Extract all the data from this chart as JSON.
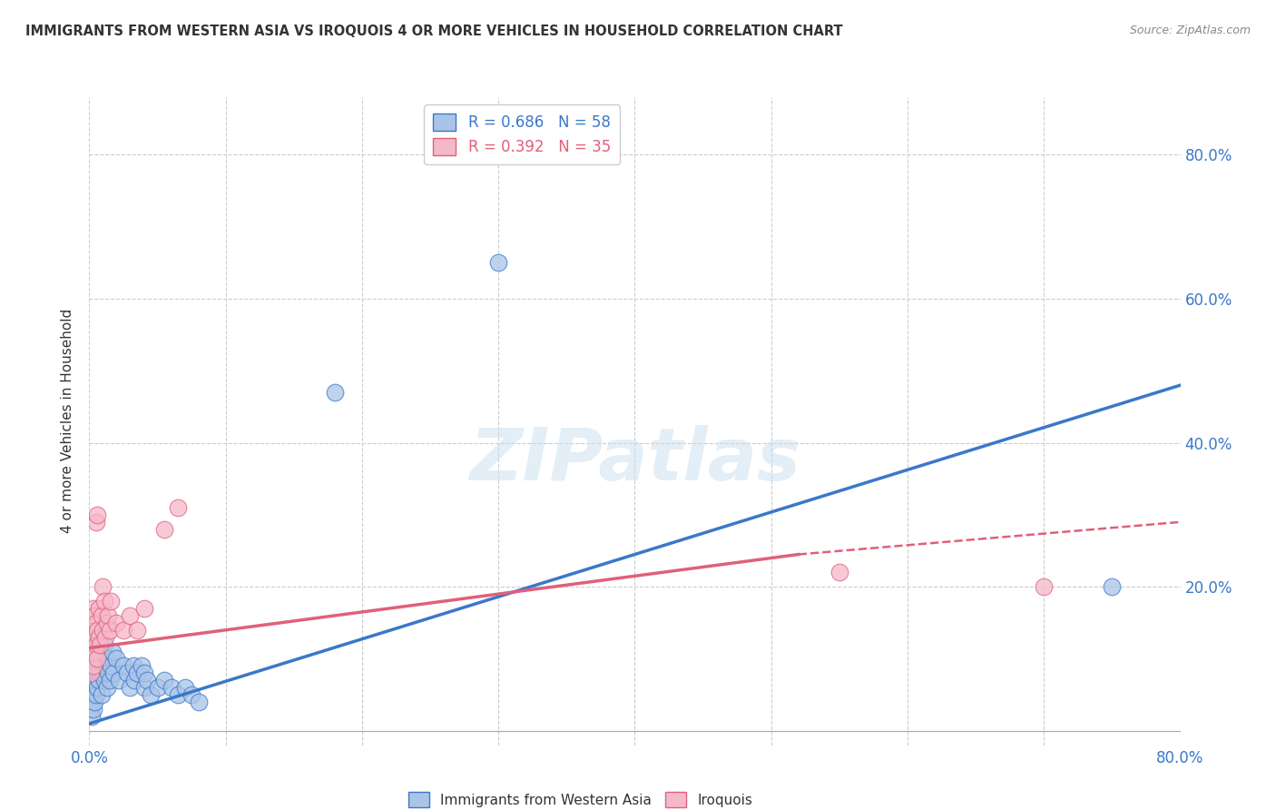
{
  "title": "IMMIGRANTS FROM WESTERN ASIA VS IROQUOIS 4 OR MORE VEHICLES IN HOUSEHOLD CORRELATION CHART",
  "source": "Source: ZipAtlas.com",
  "ylabel": "4 or more Vehicles in Household",
  "legend_label_blue": "Immigrants from Western Asia",
  "legend_label_pink": "Iroquois",
  "R_blue": 0.686,
  "N_blue": 58,
  "R_pink": 0.392,
  "N_pink": 35,
  "xlim": [
    0.0,
    0.8
  ],
  "ylim": [
    -0.02,
    0.88
  ],
  "plot_ylim": [
    0.0,
    0.8
  ],
  "xticks": [
    0.0,
    0.1,
    0.2,
    0.3,
    0.4,
    0.5,
    0.6,
    0.7,
    0.8
  ],
  "xtick_labels": [
    "0.0%",
    "",
    "",
    "",
    "",
    "",
    "",
    "",
    "80.0%"
  ],
  "yticks": [
    0.0,
    0.2,
    0.4,
    0.6,
    0.8
  ],
  "ytick_labels": [
    "",
    "20.0%",
    "40.0%",
    "60.0%",
    "80.0%"
  ],
  "color_blue": "#aac4e8",
  "color_blue_line": "#3a78c9",
  "color_pink": "#f5b8ca",
  "color_pink_line": "#e0607a",
  "watermark": "ZIPatlas",
  "background_color": "#ffffff",
  "blue_scatter": [
    [
      0.001,
      0.03
    ],
    [
      0.001,
      0.05
    ],
    [
      0.002,
      0.02
    ],
    [
      0.002,
      0.06
    ],
    [
      0.003,
      0.03
    ],
    [
      0.003,
      0.07
    ],
    [
      0.003,
      0.09
    ],
    [
      0.004,
      0.04
    ],
    [
      0.004,
      0.08
    ],
    [
      0.004,
      0.1
    ],
    [
      0.005,
      0.05
    ],
    [
      0.005,
      0.09
    ],
    [
      0.005,
      0.11
    ],
    [
      0.006,
      0.06
    ],
    [
      0.006,
      0.08
    ],
    [
      0.006,
      0.12
    ],
    [
      0.007,
      0.07
    ],
    [
      0.007,
      0.11
    ],
    [
      0.007,
      0.13
    ],
    [
      0.008,
      0.08
    ],
    [
      0.008,
      0.1
    ],
    [
      0.009,
      0.05
    ],
    [
      0.009,
      0.09
    ],
    [
      0.01,
      0.08
    ],
    [
      0.01,
      0.11
    ],
    [
      0.011,
      0.07
    ],
    [
      0.011,
      0.12
    ],
    [
      0.012,
      0.09
    ],
    [
      0.013,
      0.06
    ],
    [
      0.013,
      0.1
    ],
    [
      0.014,
      0.08
    ],
    [
      0.015,
      0.07
    ],
    [
      0.016,
      0.09
    ],
    [
      0.017,
      0.11
    ],
    [
      0.018,
      0.08
    ],
    [
      0.02,
      0.1
    ],
    [
      0.022,
      0.07
    ],
    [
      0.025,
      0.09
    ],
    [
      0.028,
      0.08
    ],
    [
      0.03,
      0.06
    ],
    [
      0.032,
      0.09
    ],
    [
      0.033,
      0.07
    ],
    [
      0.035,
      0.08
    ],
    [
      0.038,
      0.09
    ],
    [
      0.04,
      0.06
    ],
    [
      0.04,
      0.08
    ],
    [
      0.042,
      0.07
    ],
    [
      0.045,
      0.05
    ],
    [
      0.05,
      0.06
    ],
    [
      0.055,
      0.07
    ],
    [
      0.06,
      0.06
    ],
    [
      0.065,
      0.05
    ],
    [
      0.07,
      0.06
    ],
    [
      0.075,
      0.05
    ],
    [
      0.08,
      0.04
    ],
    [
      0.18,
      0.47
    ],
    [
      0.3,
      0.65
    ],
    [
      0.75,
      0.2
    ]
  ],
  "pink_scatter": [
    [
      0.001,
      0.08
    ],
    [
      0.002,
      0.1
    ],
    [
      0.002,
      0.14
    ],
    [
      0.003,
      0.09
    ],
    [
      0.003,
      0.13
    ],
    [
      0.003,
      0.17
    ],
    [
      0.004,
      0.11
    ],
    [
      0.004,
      0.16
    ],
    [
      0.005,
      0.12
    ],
    [
      0.005,
      0.15
    ],
    [
      0.005,
      0.29
    ],
    [
      0.006,
      0.1
    ],
    [
      0.006,
      0.14
    ],
    [
      0.006,
      0.3
    ],
    [
      0.007,
      0.13
    ],
    [
      0.007,
      0.17
    ],
    [
      0.008,
      0.12
    ],
    [
      0.009,
      0.16
    ],
    [
      0.01,
      0.14
    ],
    [
      0.01,
      0.2
    ],
    [
      0.011,
      0.18
    ],
    [
      0.012,
      0.13
    ],
    [
      0.013,
      0.15
    ],
    [
      0.014,
      0.16
    ],
    [
      0.015,
      0.14
    ],
    [
      0.016,
      0.18
    ],
    [
      0.02,
      0.15
    ],
    [
      0.025,
      0.14
    ],
    [
      0.03,
      0.16
    ],
    [
      0.035,
      0.14
    ],
    [
      0.04,
      0.17
    ],
    [
      0.055,
      0.28
    ],
    [
      0.065,
      0.31
    ],
    [
      0.55,
      0.22
    ],
    [
      0.7,
      0.2
    ]
  ],
  "blue_line": {
    "x0": 0.0,
    "y0": 0.01,
    "x1": 0.8,
    "y1": 0.48
  },
  "pink_line_solid": {
    "x0": 0.0,
    "y0": 0.115,
    "x1": 0.52,
    "y1": 0.245
  },
  "pink_line_dashed": {
    "x0": 0.52,
    "y0": 0.245,
    "x1": 0.8,
    "y1": 0.29
  }
}
